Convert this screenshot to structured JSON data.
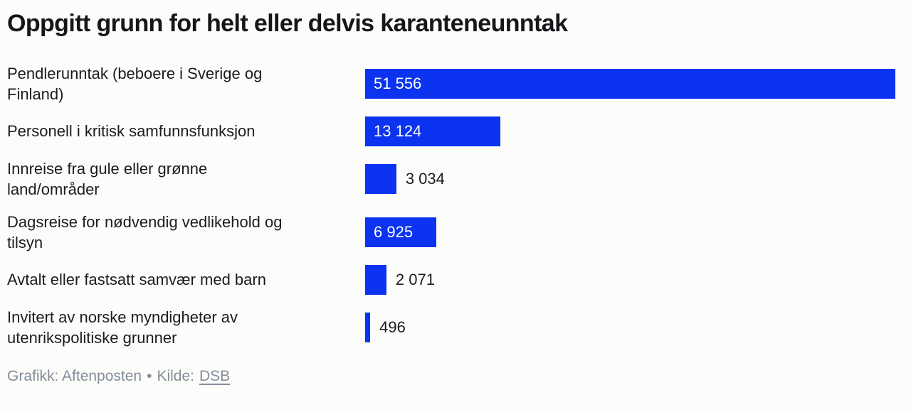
{
  "page": {
    "title": "Oppgitt grunn for helt eller delvis karanteneunntak"
  },
  "chart_data": {
    "type": "bar",
    "orientation": "horizontal",
    "title": "Oppgitt grunn for helt eller delvis karanteneunntak",
    "xlabel": "",
    "ylabel": "",
    "axis_max": 51556,
    "grid": false,
    "legend": false,
    "bar_color": "#0b33f0",
    "items": [
      {
        "label": "Pendlerunntak (beboere i Sverige og\nFinland)",
        "value": 51556,
        "display_value": "51 556",
        "value_inside_bar": true
      },
      {
        "label": "Personell i kritisk samfunnsfunksjon",
        "value": 13124,
        "display_value": "13 124",
        "value_inside_bar": true
      },
      {
        "label": "Innreise fra gule eller grønne\nland/områder",
        "value": 3034,
        "display_value": "3 034",
        "value_inside_bar": false
      },
      {
        "label": "Dagsreise for nødvendig vedlikehold og\ntilsyn",
        "value": 6925,
        "display_value": "6 925",
        "value_inside_bar": true
      },
      {
        "label": "Avtalt eller fastsatt samvær med barn",
        "value": 2071,
        "display_value": "2 071",
        "value_inside_bar": false
      },
      {
        "label": "Invitert av norske myndigheter av\nutenrikspolitiske grunner",
        "value": 496,
        "display_value": "496",
        "value_inside_bar": false
      }
    ]
  },
  "footer": {
    "credit": "Grafikk: Aftenposten",
    "separator": "•",
    "source_prefix": "Kilde:",
    "source_label": "DSB"
  }
}
